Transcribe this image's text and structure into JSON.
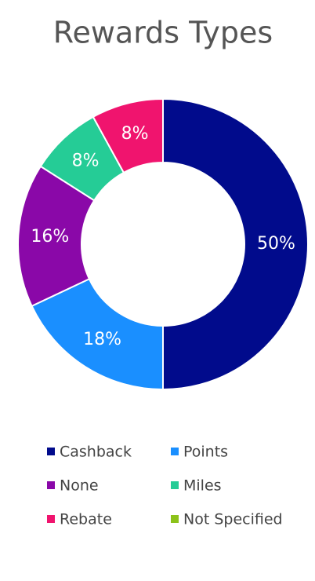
{
  "chart_data": {
    "type": "donut",
    "title": "Rewards Types",
    "categories": [
      "Cashback",
      "Points",
      "None",
      "Miles",
      "Rebate",
      "Not Specified"
    ],
    "values": [
      50,
      18,
      16,
      8,
      8,
      0
    ],
    "value_labels": [
      "50%",
      "18%",
      "16%",
      "8%",
      "8%",
      null
    ],
    "colors": [
      "#010b8c",
      "#1a8fff",
      "#8a08a8",
      "#25cc96",
      "#f0146e",
      "#8cc21a"
    ],
    "legend": "bottom"
  }
}
